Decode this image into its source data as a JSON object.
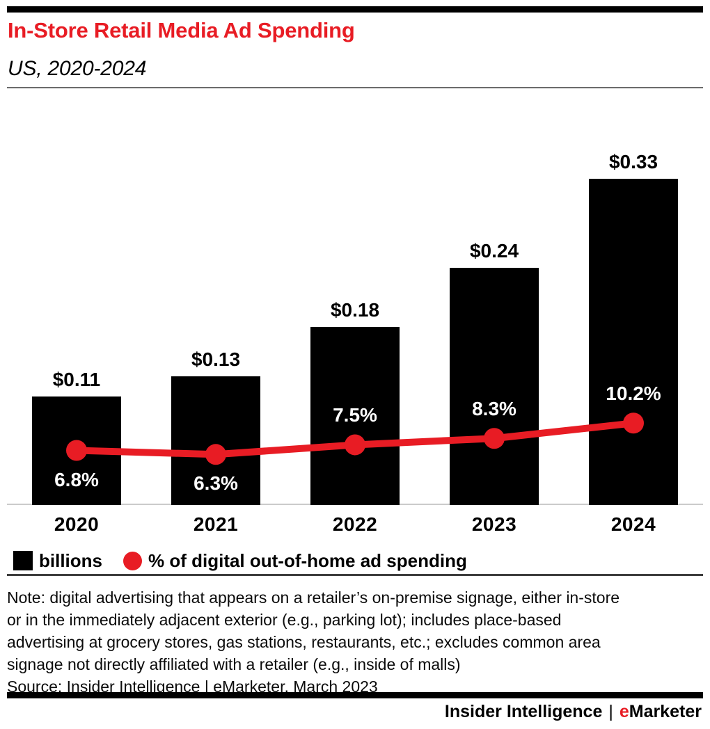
{
  "colors": {
    "accent_red": "#e81c24",
    "bar_black": "#000000"
  },
  "chart_data": {
    "type": "bar",
    "title": "In-Store Retail Media Ad Spending",
    "subtitle": "US, 2020-2024",
    "categories": [
      "2020",
      "2021",
      "2022",
      "2023",
      "2024"
    ],
    "series": [
      {
        "name": "billions",
        "kind": "bar",
        "color": "#000000",
        "values": [
          0.11,
          0.13,
          0.18,
          0.24,
          0.33
        ],
        "data_labels": [
          "$0.11",
          "$0.13",
          "$0.18",
          "$0.24",
          "$0.33"
        ]
      },
      {
        "name": "% of digital out-of-home ad spending",
        "kind": "line",
        "color": "#e81c24",
        "values": [
          6.8,
          6.3,
          7.5,
          8.3,
          10.2
        ],
        "data_labels": [
          "6.8%",
          "6.3%",
          "7.5%",
          "8.3%",
          "10.2%"
        ],
        "label_side": [
          "below",
          "below",
          "above",
          "above",
          "above"
        ]
      }
    ],
    "legend": [
      {
        "swatch": "square",
        "color": "#000000",
        "label": "billions"
      },
      {
        "swatch": "circle",
        "color": "#e81c24",
        "label": "% of digital out-of-home ad spending"
      }
    ],
    "legend_position": "bottom-left",
    "grid": false,
    "y_axis_ticks_visible": false
  },
  "footnote": {
    "lines": [
      "Note: digital advertising that appears on a retailer’s on-premise signage, either in-store",
      "or in the immediately adjacent exterior (e.g., parking lot); includes place-based",
      "advertising at grocery stores, gas stations, restaurants, etc.; excludes common area",
      "signage not directly affiliated with a retailer (e.g., inside of malls)"
    ],
    "source": "Source: Insider Intelligence | eMarketer, March 2023"
  },
  "footer": {
    "brand_left": "Insider Intelligence",
    "separator": "|",
    "emarketer_accent": "e",
    "emarketer_rest": "Marketer"
  }
}
